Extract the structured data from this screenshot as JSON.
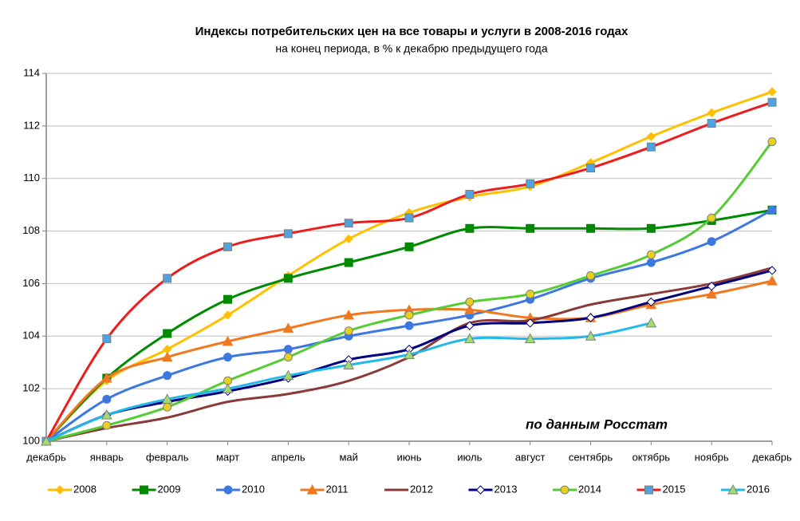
{
  "chart_data": {
    "type": "line",
    "title": "Индексы потребительских цен на все товары и услуги в 2008-2016 годах",
    "subtitle": "на конец периода, в % к декабрю предыдущего года",
    "annotation": "по данным Росстат",
    "categories": [
      "декабрь",
      "январь",
      "февраль",
      "март",
      "апрель",
      "май",
      "июнь",
      "июль",
      "август",
      "сентябрь",
      "октябрь",
      "ноябрь",
      "декабрь"
    ],
    "ylim": [
      100,
      114
    ],
    "yticks": [
      100,
      102,
      104,
      106,
      108,
      110,
      112,
      114
    ],
    "grid": true,
    "smooth": true,
    "legend": "bottom",
    "series": [
      {
        "name": "2008",
        "color": "#FFC000",
        "marker": "diamond",
        "marker_fill": "#FFC000",
        "values": [
          100,
          102.3,
          103.5,
          104.8,
          106.3,
          107.7,
          108.7,
          109.3,
          109.7,
          110.6,
          111.6,
          112.5,
          113.3
        ]
      },
      {
        "name": "2009",
        "color": "#008A00",
        "marker": "square",
        "marker_fill": "#008A00",
        "values": [
          100,
          102.4,
          104.1,
          105.4,
          106.2,
          106.8,
          107.4,
          108.1,
          108.1,
          108.1,
          108.1,
          108.4,
          108.8
        ]
      },
      {
        "name": "2010",
        "color": "#3C78E0",
        "marker": "circle",
        "marker_fill": "#3C78E0",
        "values": [
          100,
          101.6,
          102.5,
          103.2,
          103.5,
          104.0,
          104.4,
          104.8,
          105.4,
          106.2,
          106.8,
          107.6,
          108.8
        ]
      },
      {
        "name": "2011",
        "color": "#F07820",
        "marker": "triangle",
        "marker_fill": "#F07820",
        "values": [
          100,
          102.4,
          103.2,
          103.8,
          104.3,
          104.8,
          105.0,
          105.0,
          104.7,
          104.7,
          105.2,
          105.6,
          106.1
        ]
      },
      {
        "name": "2012",
        "color": "#8B3A3A",
        "marker": "none",
        "marker_fill": "#8B3A3A",
        "values": [
          100,
          100.5,
          100.9,
          101.5,
          101.8,
          102.3,
          103.2,
          104.5,
          104.6,
          105.2,
          105.6,
          106.0,
          106.6
        ]
      },
      {
        "name": "2013",
        "color": "#00007F",
        "marker": "diamond",
        "marker_fill": "#FFFFFF",
        "values": [
          100,
          101.0,
          101.5,
          101.9,
          102.4,
          103.1,
          103.5,
          104.4,
          104.5,
          104.7,
          105.3,
          105.9,
          106.5
        ]
      },
      {
        "name": "2014",
        "color": "#55CC33",
        "marker": "circle",
        "marker_fill": "#E8D020",
        "values": [
          100,
          100.6,
          101.3,
          102.3,
          103.2,
          104.2,
          104.8,
          105.3,
          105.6,
          106.3,
          107.1,
          108.5,
          111.4
        ]
      },
      {
        "name": "2015",
        "color": "#EE1C1C",
        "marker": "square",
        "marker_fill": "#4FA3E0",
        "values": [
          100,
          103.9,
          106.2,
          107.4,
          107.9,
          108.3,
          108.5,
          109.4,
          109.8,
          110.4,
          111.2,
          112.1,
          112.9
        ]
      },
      {
        "name": "2016",
        "color": "#22B8E8",
        "marker": "triangle",
        "marker_fill": "#A0DC70",
        "values": [
          100,
          101.0,
          101.6,
          102.0,
          102.5,
          102.9,
          103.3,
          103.9,
          103.9,
          104.0,
          104.5,
          null,
          null
        ]
      }
    ]
  }
}
